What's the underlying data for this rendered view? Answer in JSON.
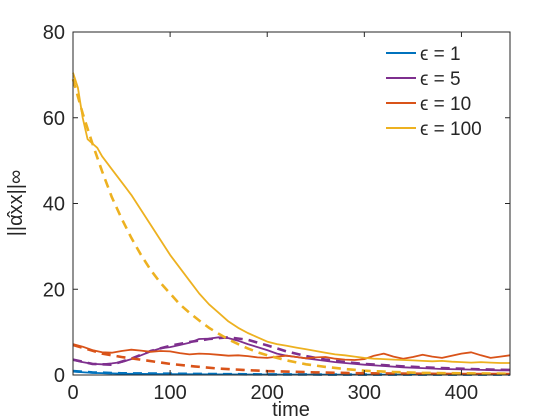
{
  "chart_data": {
    "type": "line",
    "xlabel": "time",
    "ylabel": "||α̂xx||∞",
    "xlim": [
      0,
      450
    ],
    "ylim": [
      0,
      80
    ],
    "xticks": [
      0,
      100,
      200,
      300,
      400
    ],
    "yticks": [
      0,
      20,
      40,
      60,
      80
    ],
    "grid": false,
    "legend_position": "top-right",
    "series": [
      {
        "name": "ϵ = 1",
        "color": "#0072bd",
        "values": [
          [
            0,
            0.8
          ],
          [
            20,
            0.5
          ],
          [
            50,
            0.3
          ],
          [
            100,
            0.2
          ],
          [
            150,
            0.15
          ],
          [
            200,
            0.12
          ],
          [
            300,
            0.1
          ],
          [
            450,
            0.1
          ]
        ],
        "dashed_values": [
          [
            0,
            0.9
          ],
          [
            20,
            0.6
          ],
          [
            50,
            0.4
          ],
          [
            100,
            0.3
          ],
          [
            150,
            0.2
          ],
          [
            200,
            0.15
          ],
          [
            300,
            0.1
          ],
          [
            450,
            0.1
          ]
        ]
      },
      {
        "name": "ϵ = 5",
        "color": "#7e2f8e",
        "values": [
          [
            0,
            3.5
          ],
          [
            10,
            3.0
          ],
          [
            20,
            2.6
          ],
          [
            30,
            2.5
          ],
          [
            40,
            2.7
          ],
          [
            50,
            3.0
          ],
          [
            60,
            3.7
          ],
          [
            70,
            4.6
          ],
          [
            80,
            5.5
          ],
          [
            90,
            6.2
          ],
          [
            100,
            6.5
          ],
          [
            110,
            7.0
          ],
          [
            120,
            7.5
          ],
          [
            130,
            8.4
          ],
          [
            140,
            8.5
          ],
          [
            150,
            8.8
          ],
          [
            160,
            8.6
          ],
          [
            170,
            8.0
          ],
          [
            180,
            7.2
          ],
          [
            190,
            6.5
          ],
          [
            200,
            5.8
          ],
          [
            210,
            5.0
          ],
          [
            220,
            4.5
          ],
          [
            230,
            4.2
          ],
          [
            240,
            3.9
          ],
          [
            250,
            3.6
          ],
          [
            260,
            3.3
          ],
          [
            270,
            3.0
          ],
          [
            280,
            2.8
          ],
          [
            290,
            2.6
          ],
          [
            300,
            2.4
          ],
          [
            320,
            2.1
          ],
          [
            340,
            1.8
          ],
          [
            360,
            1.6
          ],
          [
            380,
            1.4
          ],
          [
            400,
            1.3
          ],
          [
            420,
            1.2
          ],
          [
            440,
            1.1
          ],
          [
            450,
            1.1
          ]
        ],
        "dashed_values": [
          [
            0,
            3.6
          ],
          [
            20,
            2.6
          ],
          [
            40,
            2.4
          ],
          [
            60,
            3.8
          ],
          [
            80,
            5.6
          ],
          [
            100,
            6.8
          ],
          [
            120,
            7.7
          ],
          [
            140,
            8.4
          ],
          [
            160,
            8.8
          ],
          [
            180,
            8.2
          ],
          [
            200,
            6.9
          ],
          [
            220,
            5.5
          ],
          [
            240,
            4.4
          ],
          [
            260,
            3.6
          ],
          [
            280,
            3.0
          ],
          [
            300,
            2.6
          ],
          [
            340,
            2.0
          ],
          [
            380,
            1.6
          ],
          [
            420,
            1.3
          ],
          [
            450,
            1.2
          ]
        ]
      },
      {
        "name": "ϵ = 10",
        "color": "#d95319",
        "values": [
          [
            0,
            7.2
          ],
          [
            10,
            6.6
          ],
          [
            20,
            5.8
          ],
          [
            30,
            5.3
          ],
          [
            40,
            5.2
          ],
          [
            50,
            5.6
          ],
          [
            60,
            5.9
          ],
          [
            70,
            5.7
          ],
          [
            80,
            5.4
          ],
          [
            90,
            5.6
          ],
          [
            100,
            5.5
          ],
          [
            110,
            5.1
          ],
          [
            120,
            4.8
          ],
          [
            130,
            5.0
          ],
          [
            140,
            4.9
          ],
          [
            150,
            4.7
          ],
          [
            160,
            4.5
          ],
          [
            170,
            4.6
          ],
          [
            180,
            4.4
          ],
          [
            190,
            4.1
          ],
          [
            200,
            4.0
          ],
          [
            210,
            4.3
          ],
          [
            220,
            4.5
          ],
          [
            230,
            4.2
          ],
          [
            240,
            3.9
          ],
          [
            250,
            4.1
          ],
          [
            260,
            4.2
          ],
          [
            270,
            3.8
          ],
          [
            280,
            3.6
          ],
          [
            290,
            3.5
          ],
          [
            300,
            3.7
          ],
          [
            310,
            4.5
          ],
          [
            320,
            5.0
          ],
          [
            330,
            4.3
          ],
          [
            340,
            3.8
          ],
          [
            350,
            4.2
          ],
          [
            360,
            4.7
          ],
          [
            370,
            4.3
          ],
          [
            380,
            4.0
          ],
          [
            390,
            4.5
          ],
          [
            400,
            5.0
          ],
          [
            410,
            5.3
          ],
          [
            420,
            4.6
          ],
          [
            430,
            4.0
          ],
          [
            440,
            4.3
          ],
          [
            450,
            4.6
          ]
        ],
        "dashed_values": [
          [
            0,
            7.0
          ],
          [
            15,
            6.0
          ],
          [
            30,
            5.0
          ],
          [
            50,
            4.2
          ],
          [
            75,
            3.4
          ],
          [
            100,
            2.6
          ],
          [
            125,
            2.0
          ],
          [
            150,
            1.5
          ],
          [
            175,
            1.2
          ],
          [
            200,
            0.9
          ],
          [
            250,
            0.6
          ],
          [
            300,
            0.4
          ],
          [
            350,
            0.3
          ],
          [
            400,
            0.2
          ],
          [
            450,
            0.2
          ]
        ]
      },
      {
        "name": "ϵ = 100",
        "color": "#edb120",
        "values": [
          [
            0,
            70.5
          ],
          [
            5,
            67
          ],
          [
            10,
            60
          ],
          [
            15,
            55
          ],
          [
            20,
            54
          ],
          [
            25,
            53
          ],
          [
            30,
            51
          ],
          [
            35,
            49.5
          ],
          [
            40,
            48
          ],
          [
            50,
            45
          ],
          [
            60,
            42
          ],
          [
            70,
            38.5
          ],
          [
            80,
            35
          ],
          [
            90,
            31.5
          ],
          [
            100,
            28
          ],
          [
            110,
            25
          ],
          [
            120,
            22
          ],
          [
            130,
            19
          ],
          [
            140,
            16.5
          ],
          [
            150,
            14.5
          ],
          [
            160,
            12.5
          ],
          [
            170,
            11
          ],
          [
            180,
            9.8
          ],
          [
            190,
            8.8
          ],
          [
            200,
            7.8
          ],
          [
            210,
            7.2
          ],
          [
            220,
            6.8
          ],
          [
            230,
            6.4
          ],
          [
            240,
            6.0
          ],
          [
            250,
            5.6
          ],
          [
            260,
            5.2
          ],
          [
            270,
            4.8
          ],
          [
            280,
            4.6
          ],
          [
            290,
            4.3
          ],
          [
            300,
            4.0
          ],
          [
            310,
            3.8
          ],
          [
            320,
            3.7
          ],
          [
            330,
            3.6
          ],
          [
            340,
            3.5
          ],
          [
            350,
            3.4
          ],
          [
            360,
            3.3
          ],
          [
            370,
            3.2
          ],
          [
            380,
            3.3
          ],
          [
            390,
            3.1
          ],
          [
            400,
            3.0
          ],
          [
            410,
            2.9
          ],
          [
            420,
            3.0
          ],
          [
            430,
            2.9
          ],
          [
            440,
            2.8
          ],
          [
            450,
            2.8
          ]
        ],
        "dashed_values": [
          [
            0,
            69
          ],
          [
            10,
            61
          ],
          [
            20,
            54
          ],
          [
            30,
            47.5
          ],
          [
            40,
            41.5
          ],
          [
            50,
            36.5
          ],
          [
            60,
            32
          ],
          [
            70,
            28
          ],
          [
            80,
            24.5
          ],
          [
            90,
            21.5
          ],
          [
            100,
            19
          ],
          [
            110,
            16.5
          ],
          [
            120,
            14.5
          ],
          [
            130,
            12.7
          ],
          [
            140,
            11
          ],
          [
            150,
            9.6
          ],
          [
            160,
            8.3
          ],
          [
            170,
            7.2
          ],
          [
            180,
            6.2
          ],
          [
            190,
            5.3
          ],
          [
            200,
            4.6
          ],
          [
            220,
            3.4
          ],
          [
            240,
            2.5
          ],
          [
            260,
            1.9
          ],
          [
            280,
            1.4
          ],
          [
            300,
            1.0
          ],
          [
            330,
            0.7
          ],
          [
            360,
            0.5
          ],
          [
            400,
            0.4
          ],
          [
            450,
            0.3
          ]
        ]
      }
    ]
  }
}
